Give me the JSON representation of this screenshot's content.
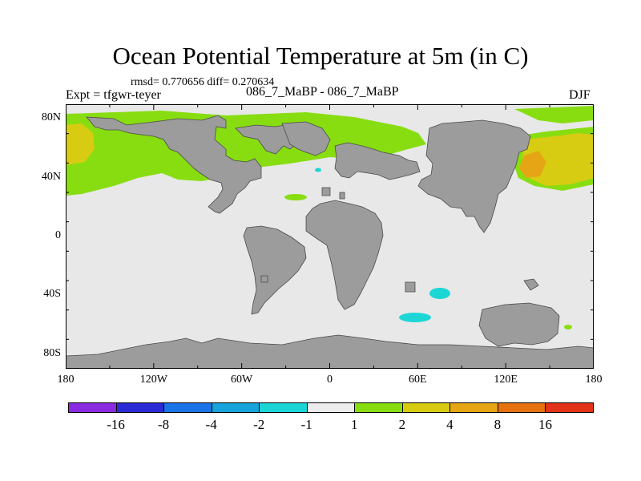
{
  "title": "Ocean Potential Temperature at 5m (in C)",
  "stats": "rmsd= 0.770656 diff= 0.270634",
  "experiment": "Expt = tfgwr-teyer",
  "case_id": "086_7_MaBP - 086_7_MaBP",
  "season": "DJF",
  "x_ticks": [
    {
      "label": "180",
      "lon": -180
    },
    {
      "label": "120W",
      "lon": -120
    },
    {
      "label": "60W",
      "lon": -60
    },
    {
      "label": "0",
      "lon": 0
    },
    {
      "label": "60E",
      "lon": 60
    },
    {
      "label": "120E",
      "lon": 120
    },
    {
      "label": "180",
      "lon": 180
    }
  ],
  "y_ticks": [
    {
      "label": "80N",
      "lat": 80
    },
    {
      "label": "40N",
      "lat": 40
    },
    {
      "label": "0",
      "lat": 0
    },
    {
      "label": "40S",
      "lat": -40
    },
    {
      "label": "80S",
      "lat": -80
    }
  ],
  "colorbar": {
    "colors": [
      "#8a2be2",
      "#2b2bd6",
      "#1a74e8",
      "#17a3dc",
      "#1cd6d6",
      "#ececec",
      "#88dd11",
      "#d8cc12",
      "#e6a515",
      "#e6720f",
      "#e23218"
    ],
    "labels": [
      "-16",
      "-8",
      "-4",
      "-2",
      "-1",
      "1",
      "2",
      "4",
      "8",
      "16"
    ]
  },
  "colors": {
    "land": "#9c9c9c",
    "ocean_neutral": "#e8e8e8",
    "light_green": "#88dd11",
    "yellow": "#d8cc12",
    "orange": "#e6a515",
    "cyan": "#1cd6d6"
  }
}
